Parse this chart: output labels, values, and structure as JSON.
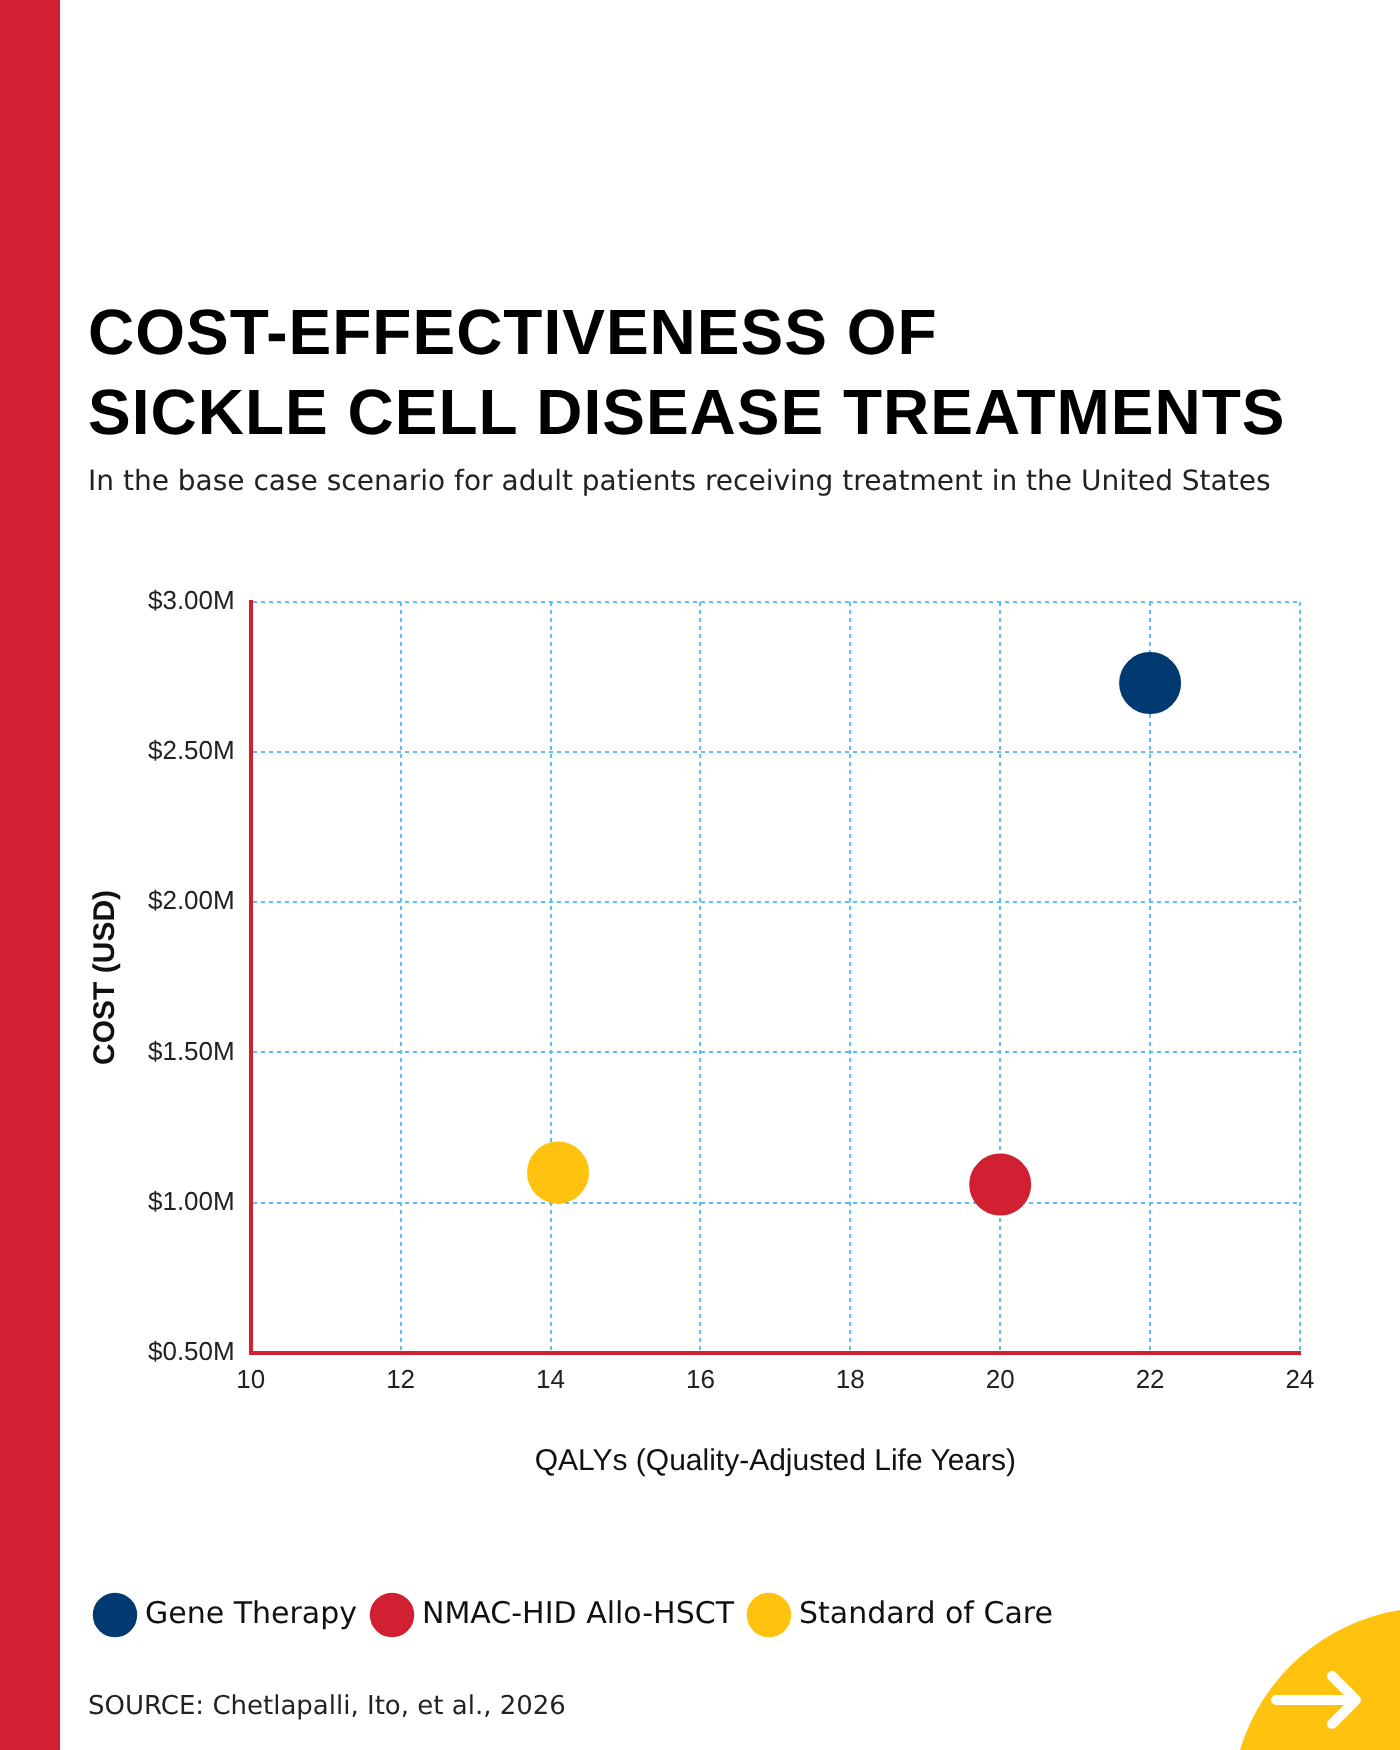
{
  "chart_data": {
    "type": "scatter",
    "title": "COST-EFFECTIVENESS OF\nSICKLE CELL DISEASE TREATMENTS",
    "subtitle": "In the base case scenario for adult patients receiving treatment in the United States",
    "xlabel": "QALYs (Quality-Adjusted Life Years)",
    "ylabel": "COST (USD)",
    "series": [
      {
        "name": "Gene Therapy",
        "color": "#003a70",
        "x": [
          22
        ],
        "values": [
          2.73
        ]
      },
      {
        "name": "NMAC-HID Allo-HSCT",
        "color": "#d12031",
        "x": [
          20
        ],
        "values": [
          1.06
        ]
      },
      {
        "name": "Standard of Care",
        "color": "#ffc20e",
        "x": [
          14.1
        ],
        "values": [
          1.1
        ]
      }
    ],
    "xlim": [
      10,
      24
    ],
    "xticks": [
      10,
      12,
      14,
      16,
      18,
      20,
      22,
      24
    ],
    "ylim": [
      0.5,
      3
    ],
    "yticks": [
      {
        "value": 0.5,
        "label": "$0.50M"
      },
      {
        "value": 1,
        "label": "$1.00M"
      },
      {
        "value": 1.5,
        "label": "$1.50M"
      },
      {
        "value": 2,
        "label": "$2.00M"
      },
      {
        "value": 2.5,
        "label": "$2.50M"
      },
      {
        "value": 3,
        "label": "$3.00M"
      }
    ],
    "grid": true,
    "legend": "bottom left",
    "marker": "circle",
    "annotations": [
      "SOURCE: Chetlapalli, Ito, et al., 2026"
    ]
  }
}
